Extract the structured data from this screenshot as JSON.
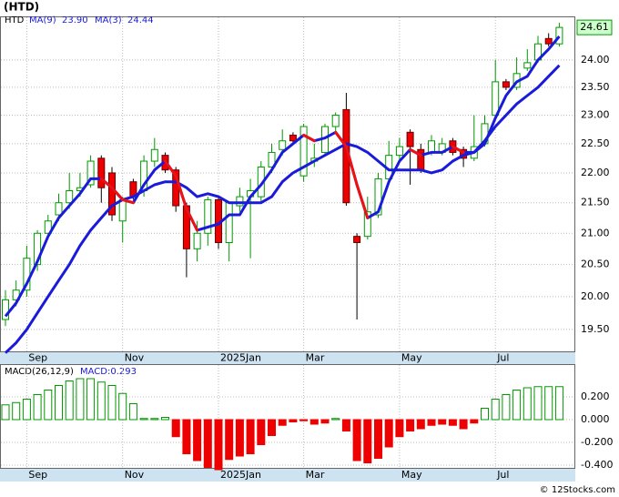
{
  "chart_data": [
    {
      "type": "candlestick",
      "title": "(HTD)",
      "log_scale": true,
      "grid": true,
      "categories": [
        null,
        null,
        "Sep",
        null,
        null,
        null,
        null,
        null,
        null,
        null,
        null,
        "Nov",
        null,
        null,
        null,
        null,
        null,
        null,
        null,
        null,
        "2025Jan",
        null,
        null,
        null,
        null,
        null,
        null,
        null,
        "Mar",
        null,
        null,
        null,
        null,
        null,
        null,
        null,
        null,
        "May",
        null,
        null,
        null,
        null,
        null,
        null,
        null,
        null,
        "Jul",
        null,
        null,
        null,
        null,
        null,
        null
      ],
      "name": "HTD",
      "up_color": "#009900",
      "down_color": "#ee0000",
      "open": [
        19.65,
        19.95,
        20.1,
        20.5,
        21.0,
        21.3,
        21.5,
        21.7,
        21.8,
        22.25,
        22.0,
        21.2,
        21.85,
        21.7,
        22.2,
        22.3,
        22.05,
        21.45,
        20.75,
        21.0,
        21.55,
        20.85,
        21.45,
        21.6,
        21.6,
        22.1,
        22.4,
        22.65,
        21.95,
        22.2,
        22.35,
        22.8,
        23.1,
        20.95,
        20.95,
        21.3,
        21.9,
        22.3,
        22.7,
        22.4,
        22.35,
        22.35,
        22.55,
        22.4,
        22.25,
        22.5,
        23.0,
        23.6,
        23.5,
        23.85,
        24.0,
        24.4,
        24.3
      ],
      "high": [
        20.1,
        20.25,
        20.8,
        21.05,
        21.3,
        21.65,
        22.0,
        22.0,
        22.3,
        22.3,
        22.1,
        21.6,
        21.9,
        22.3,
        22.6,
        22.35,
        22.1,
        21.5,
        21.2,
        21.6,
        21.6,
        21.5,
        21.75,
        21.9,
        22.2,
        22.5,
        22.75,
        22.7,
        22.85,
        22.5,
        22.85,
        23.05,
        23.4,
        21.0,
        21.6,
        22.0,
        22.55,
        22.6,
        22.75,
        22.5,
        22.65,
        22.6,
        22.6,
        22.45,
        23.0,
        23.0,
        24.0,
        23.65,
        24.05,
        24.2,
        24.45,
        24.5,
        24.7
      ],
      "low": [
        19.55,
        19.85,
        20.0,
        20.4,
        20.9,
        21.2,
        21.4,
        21.6,
        21.75,
        21.5,
        21.2,
        20.85,
        21.55,
        21.6,
        22.1,
        22.0,
        21.35,
        20.3,
        20.55,
        20.8,
        20.75,
        20.55,
        21.35,
        20.6,
        21.5,
        22.0,
        22.3,
        22.5,
        21.85,
        22.1,
        22.3,
        22.7,
        21.45,
        19.65,
        20.9,
        21.25,
        21.85,
        22.2,
        21.8,
        22.0,
        22.3,
        22.3,
        22.3,
        22.1,
        22.2,
        22.45,
        22.95,
        23.45,
        23.45,
        23.8,
        23.95,
        24.25,
        24.25
      ],
      "close": [
        19.95,
        20.1,
        20.6,
        21.0,
        21.2,
        21.5,
        21.7,
        21.75,
        22.2,
        21.75,
        21.3,
        21.55,
        21.6,
        22.2,
        22.4,
        22.05,
        21.45,
        20.75,
        21.0,
        21.55,
        20.85,
        21.5,
        21.6,
        21.7,
        22.1,
        22.35,
        22.55,
        22.55,
        22.8,
        22.25,
        22.8,
        23.0,
        21.5,
        20.85,
        21.35,
        21.9,
        22.3,
        22.45,
        22.45,
        22.05,
        22.55,
        22.5,
        22.35,
        22.25,
        22.45,
        22.85,
        23.6,
        23.5,
        23.75,
        23.95,
        24.3,
        24.3,
        24.61
      ],
      "last_price": 24.61,
      "series": [
        {
          "name": "MA(9)",
          "color": "#1a1adb",
          "value_label": "23.90",
          "values": [
            19.15,
            19.3,
            19.5,
            19.75,
            20.0,
            20.25,
            20.5,
            20.8,
            21.05,
            21.25,
            21.45,
            21.55,
            21.6,
            21.7,
            21.8,
            21.85,
            21.85,
            21.75,
            21.6,
            21.65,
            21.6,
            21.5,
            21.5,
            21.5,
            21.5,
            21.6,
            21.85,
            22.0,
            22.1,
            22.2,
            22.3,
            22.4,
            22.5,
            22.45,
            22.35,
            22.2,
            22.05,
            22.05,
            22.05,
            22.05,
            22.0,
            22.05,
            22.2,
            22.3,
            22.35,
            22.55,
            22.8,
            23.0,
            23.2,
            23.35,
            23.5,
            23.7,
            23.9
          ]
        },
        {
          "name": "MA(3)",
          "color": "#1a1adb",
          "falling_color": "#ee1111",
          "value_label": "24.44",
          "values": [
            19.7,
            19.9,
            20.2,
            20.55,
            20.95,
            21.25,
            21.45,
            21.65,
            21.9,
            21.9,
            21.75,
            21.55,
            21.5,
            21.8,
            22.05,
            22.2,
            21.95,
            21.4,
            21.05,
            21.1,
            21.15,
            21.3,
            21.3,
            21.6,
            21.8,
            22.05,
            22.35,
            22.5,
            22.65,
            22.55,
            22.6,
            22.7,
            22.45,
            21.8,
            21.25,
            21.35,
            21.85,
            22.2,
            22.4,
            22.3,
            22.35,
            22.35,
            22.45,
            22.35,
            22.35,
            22.5,
            22.95,
            23.35,
            23.6,
            23.7,
            24.0,
            24.2,
            24.44
          ]
        }
      ],
      "ylim": [
        19.16,
        24.82
      ],
      "yticks": [
        {
          "value": 19.5,
          "label": "19.50"
        },
        {
          "value": 20,
          "label": "20.00"
        },
        {
          "value": 20.5,
          "label": "20.50"
        },
        {
          "value": 21,
          "label": "21.00"
        },
        {
          "value": 21.5,
          "label": "21.50"
        },
        {
          "value": 22,
          "label": "22.00"
        },
        {
          "value": 22.5,
          "label": "22.50"
        },
        {
          "value": 23,
          "label": "23.00"
        },
        {
          "value": 23.5,
          "label": "23.50"
        },
        {
          "value": 24,
          "label": "24.00"
        }
      ]
    },
    {
      "type": "bar",
      "title": "MACD(26,12,9)",
      "value_label": "MACD:0.293",
      "grid": true,
      "categories": [
        null,
        null,
        "Sep",
        null,
        null,
        null,
        null,
        null,
        null,
        null,
        null,
        "Nov",
        null,
        null,
        null,
        null,
        null,
        null,
        null,
        null,
        "2025Jan",
        null,
        null,
        null,
        null,
        null,
        null,
        null,
        "Mar",
        null,
        null,
        null,
        null,
        null,
        null,
        null,
        null,
        "May",
        null,
        null,
        null,
        null,
        null,
        null,
        null,
        null,
        "Jul",
        null,
        null,
        null,
        null,
        null,
        null
      ],
      "up_color": "#009900",
      "down_color": "#ee0000",
      "values": [
        0.13,
        0.15,
        0.18,
        0.22,
        0.26,
        0.3,
        0.34,
        0.36,
        0.36,
        0.33,
        0.3,
        0.23,
        0.14,
        0.01,
        0.01,
        0.02,
        -0.15,
        -0.3,
        -0.36,
        -0.42,
        -0.44,
        -0.35,
        -0.32,
        -0.3,
        -0.22,
        -0.14,
        -0.05,
        -0.02,
        -0.01,
        -0.04,
        -0.03,
        0.01,
        -0.1,
        -0.36,
        -0.38,
        -0.34,
        -0.24,
        -0.15,
        -0.1,
        -0.08,
        -0.05,
        -0.04,
        -0.05,
        -0.08,
        -0.03,
        0.1,
        0.18,
        0.22,
        0.26,
        0.28,
        0.29,
        0.29,
        0.29
      ],
      "ylim": [
        -0.432,
        0.488
      ],
      "yticks": [
        {
          "value": -0.4,
          "label": "-0.400"
        },
        {
          "value": -0.2,
          "label": "-0.200"
        },
        {
          "value": 0,
          "label": "0.000"
        },
        {
          "value": 0.2,
          "label": "0.200"
        }
      ]
    }
  ],
  "footer": "© 12Stocks.com"
}
